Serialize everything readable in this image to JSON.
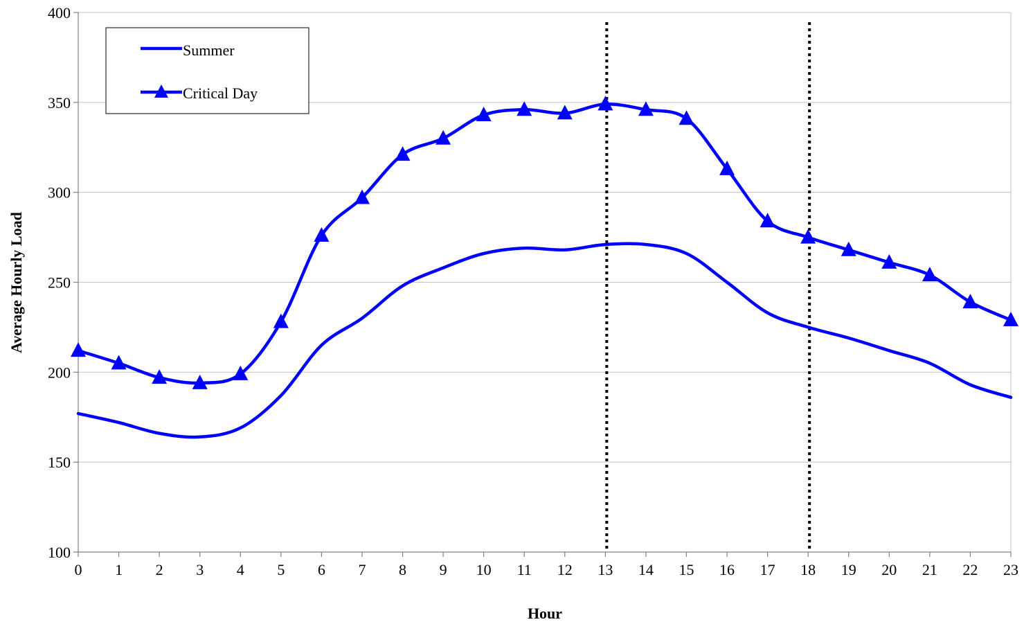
{
  "chart_data": {
    "type": "line",
    "title": "",
    "xlabel": "Hour",
    "ylabel": "Average Hourly Load",
    "categories": [
      "0",
      "1",
      "2",
      "3",
      "4",
      "5",
      "6",
      "7",
      "8",
      "9",
      "10",
      "11",
      "12",
      "13",
      "14",
      "15",
      "16",
      "17",
      "18",
      "19",
      "20",
      "21",
      "22",
      "23"
    ],
    "ylim": [
      100,
      400
    ],
    "yticks": [
      "100",
      "150",
      "200",
      "250",
      "300",
      "350",
      "400"
    ],
    "grid": true,
    "legend_position": "top-left",
    "series": [
      {
        "name": "Summer",
        "marker": "none",
        "color": "#0000ff",
        "values": [
          177,
          172,
          166,
          164,
          169,
          187,
          215,
          230,
          248,
          258,
          266,
          269,
          268,
          271,
          271,
          266,
          250,
          233,
          225,
          219,
          212,
          205,
          193,
          186
        ]
      },
      {
        "name": "Critical Day",
        "marker": "triangle",
        "color": "#0000ff",
        "values": [
          212,
          205,
          197,
          194,
          199,
          228,
          276,
          297,
          321,
          330,
          343,
          346,
          344,
          349,
          346,
          341,
          313,
          284,
          275,
          268,
          261,
          254,
          239,
          229
        ]
      }
    ],
    "reference_lines_x": [
      13,
      18
    ]
  }
}
